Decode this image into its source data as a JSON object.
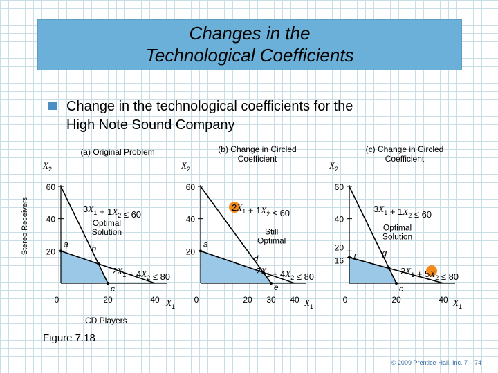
{
  "slide": {
    "title_line1": "Changes in the",
    "title_line2": "Technological Coefficients",
    "bullet_line1": "Change in the technological coefficients for the",
    "bullet_line2": "High Note Sound Company",
    "y_axis_title": "Stereo Receivers",
    "x_axis_title": "CD Players",
    "figure_label": "Figure 7.18",
    "copyright": "© 2009 Prentice-Hall, Inc.   7 – 74"
  },
  "colors": {
    "title_bg": "#6ab0d8",
    "feasible_region": "#9cc8e8",
    "circle_highlight": "#f28a1e",
    "grid": "#c9dde6"
  },
  "chart_data": [
    {
      "type": "line",
      "title": "(a) Original Problem",
      "xlabel": "X1",
      "ylabel": "X2",
      "xlim": [
        0,
        45
      ],
      "ylim": [
        0,
        60
      ],
      "x_ticks": [
        "0",
        "20",
        "40"
      ],
      "y_ticks": [
        "20",
        "40",
        "60"
      ],
      "constraints": [
        {
          "label": "3X1 + 1X2 ≤ 60",
          "points": [
            [
              0,
              60
            ],
            [
              20,
              0
            ]
          ]
        },
        {
          "label": "2X1 + 4X2 ≤ 80",
          "points": [
            [
              0,
              20
            ],
            [
              40,
              0
            ]
          ]
        }
      ],
      "feasible_region": [
        [
          0,
          0
        ],
        [
          0,
          20
        ],
        [
          16,
          12
        ],
        [
          20,
          0
        ]
      ],
      "points": [
        {
          "label": "a",
          "x": 0,
          "y": 20
        },
        {
          "label": "b",
          "x": 16,
          "y": 12
        },
        {
          "label": "c",
          "x": 20,
          "y": 0
        }
      ],
      "annotations": [
        {
          "text": "Optimal Solution",
          "x": 16,
          "y": 12
        }
      ]
    },
    {
      "type": "line",
      "title": "(b) Change in Circled Coefficient",
      "xlabel": "X1",
      "ylabel": "X2",
      "xlim": [
        0,
        45
      ],
      "ylim": [
        0,
        60
      ],
      "x_ticks": [
        "0",
        "20",
        "30",
        "40"
      ],
      "y_ticks": [
        "20",
        "40",
        "60"
      ],
      "circled_coefficient": "2",
      "constraints": [
        {
          "label": "2X1 + 1X2 ≤ 60",
          "points": [
            [
              0,
              60
            ],
            [
              30,
              0
            ]
          ]
        },
        {
          "label": "2X1 + 4X2 ≤ 80",
          "points": [
            [
              0,
              20
            ],
            [
              40,
              0
            ]
          ]
        }
      ],
      "feasible_region": [
        [
          0,
          0
        ],
        [
          0,
          20
        ],
        [
          26.67,
          6.67
        ],
        [
          30,
          0
        ]
      ],
      "points": [
        {
          "label": "a",
          "x": 0,
          "y": 20
        },
        {
          "label": "d",
          "x": 26.67,
          "y": 6.67
        },
        {
          "label": "e",
          "x": 30,
          "y": 0
        }
      ],
      "annotations": [
        {
          "text": "Still Optimal",
          "x": 26.67,
          "y": 6.67
        }
      ]
    },
    {
      "type": "line",
      "title": "(c) Change in Circled Coefficient",
      "xlabel": "X1",
      "ylabel": "X2",
      "xlim": [
        0,
        45
      ],
      "ylim": [
        0,
        60
      ],
      "x_ticks": [
        "0",
        "20",
        "40"
      ],
      "y_ticks": [
        "16",
        "20",
        "40",
        "60"
      ],
      "circled_coefficient": "5",
      "constraints": [
        {
          "label": "3X1 + 1X2 ≤ 60",
          "points": [
            [
              0,
              60
            ],
            [
              20,
              0
            ]
          ]
        },
        {
          "label": "2X1 + 5X2 ≤ 80",
          "points": [
            [
              0,
              16
            ],
            [
              40,
              0
            ]
          ]
        }
      ],
      "feasible_region": [
        [
          0,
          0
        ],
        [
          0,
          16
        ],
        [
          16.92,
          9.23
        ],
        [
          20,
          0
        ]
      ],
      "points": [
        {
          "label": "f",
          "x": 0,
          "y": 16
        },
        {
          "label": "g",
          "x": 16.92,
          "y": 9.23
        },
        {
          "label": "c",
          "x": 20,
          "y": 0
        }
      ],
      "annotations": [
        {
          "text": "Optimal Solution",
          "x": 16.92,
          "y": 9.23
        }
      ]
    }
  ]
}
